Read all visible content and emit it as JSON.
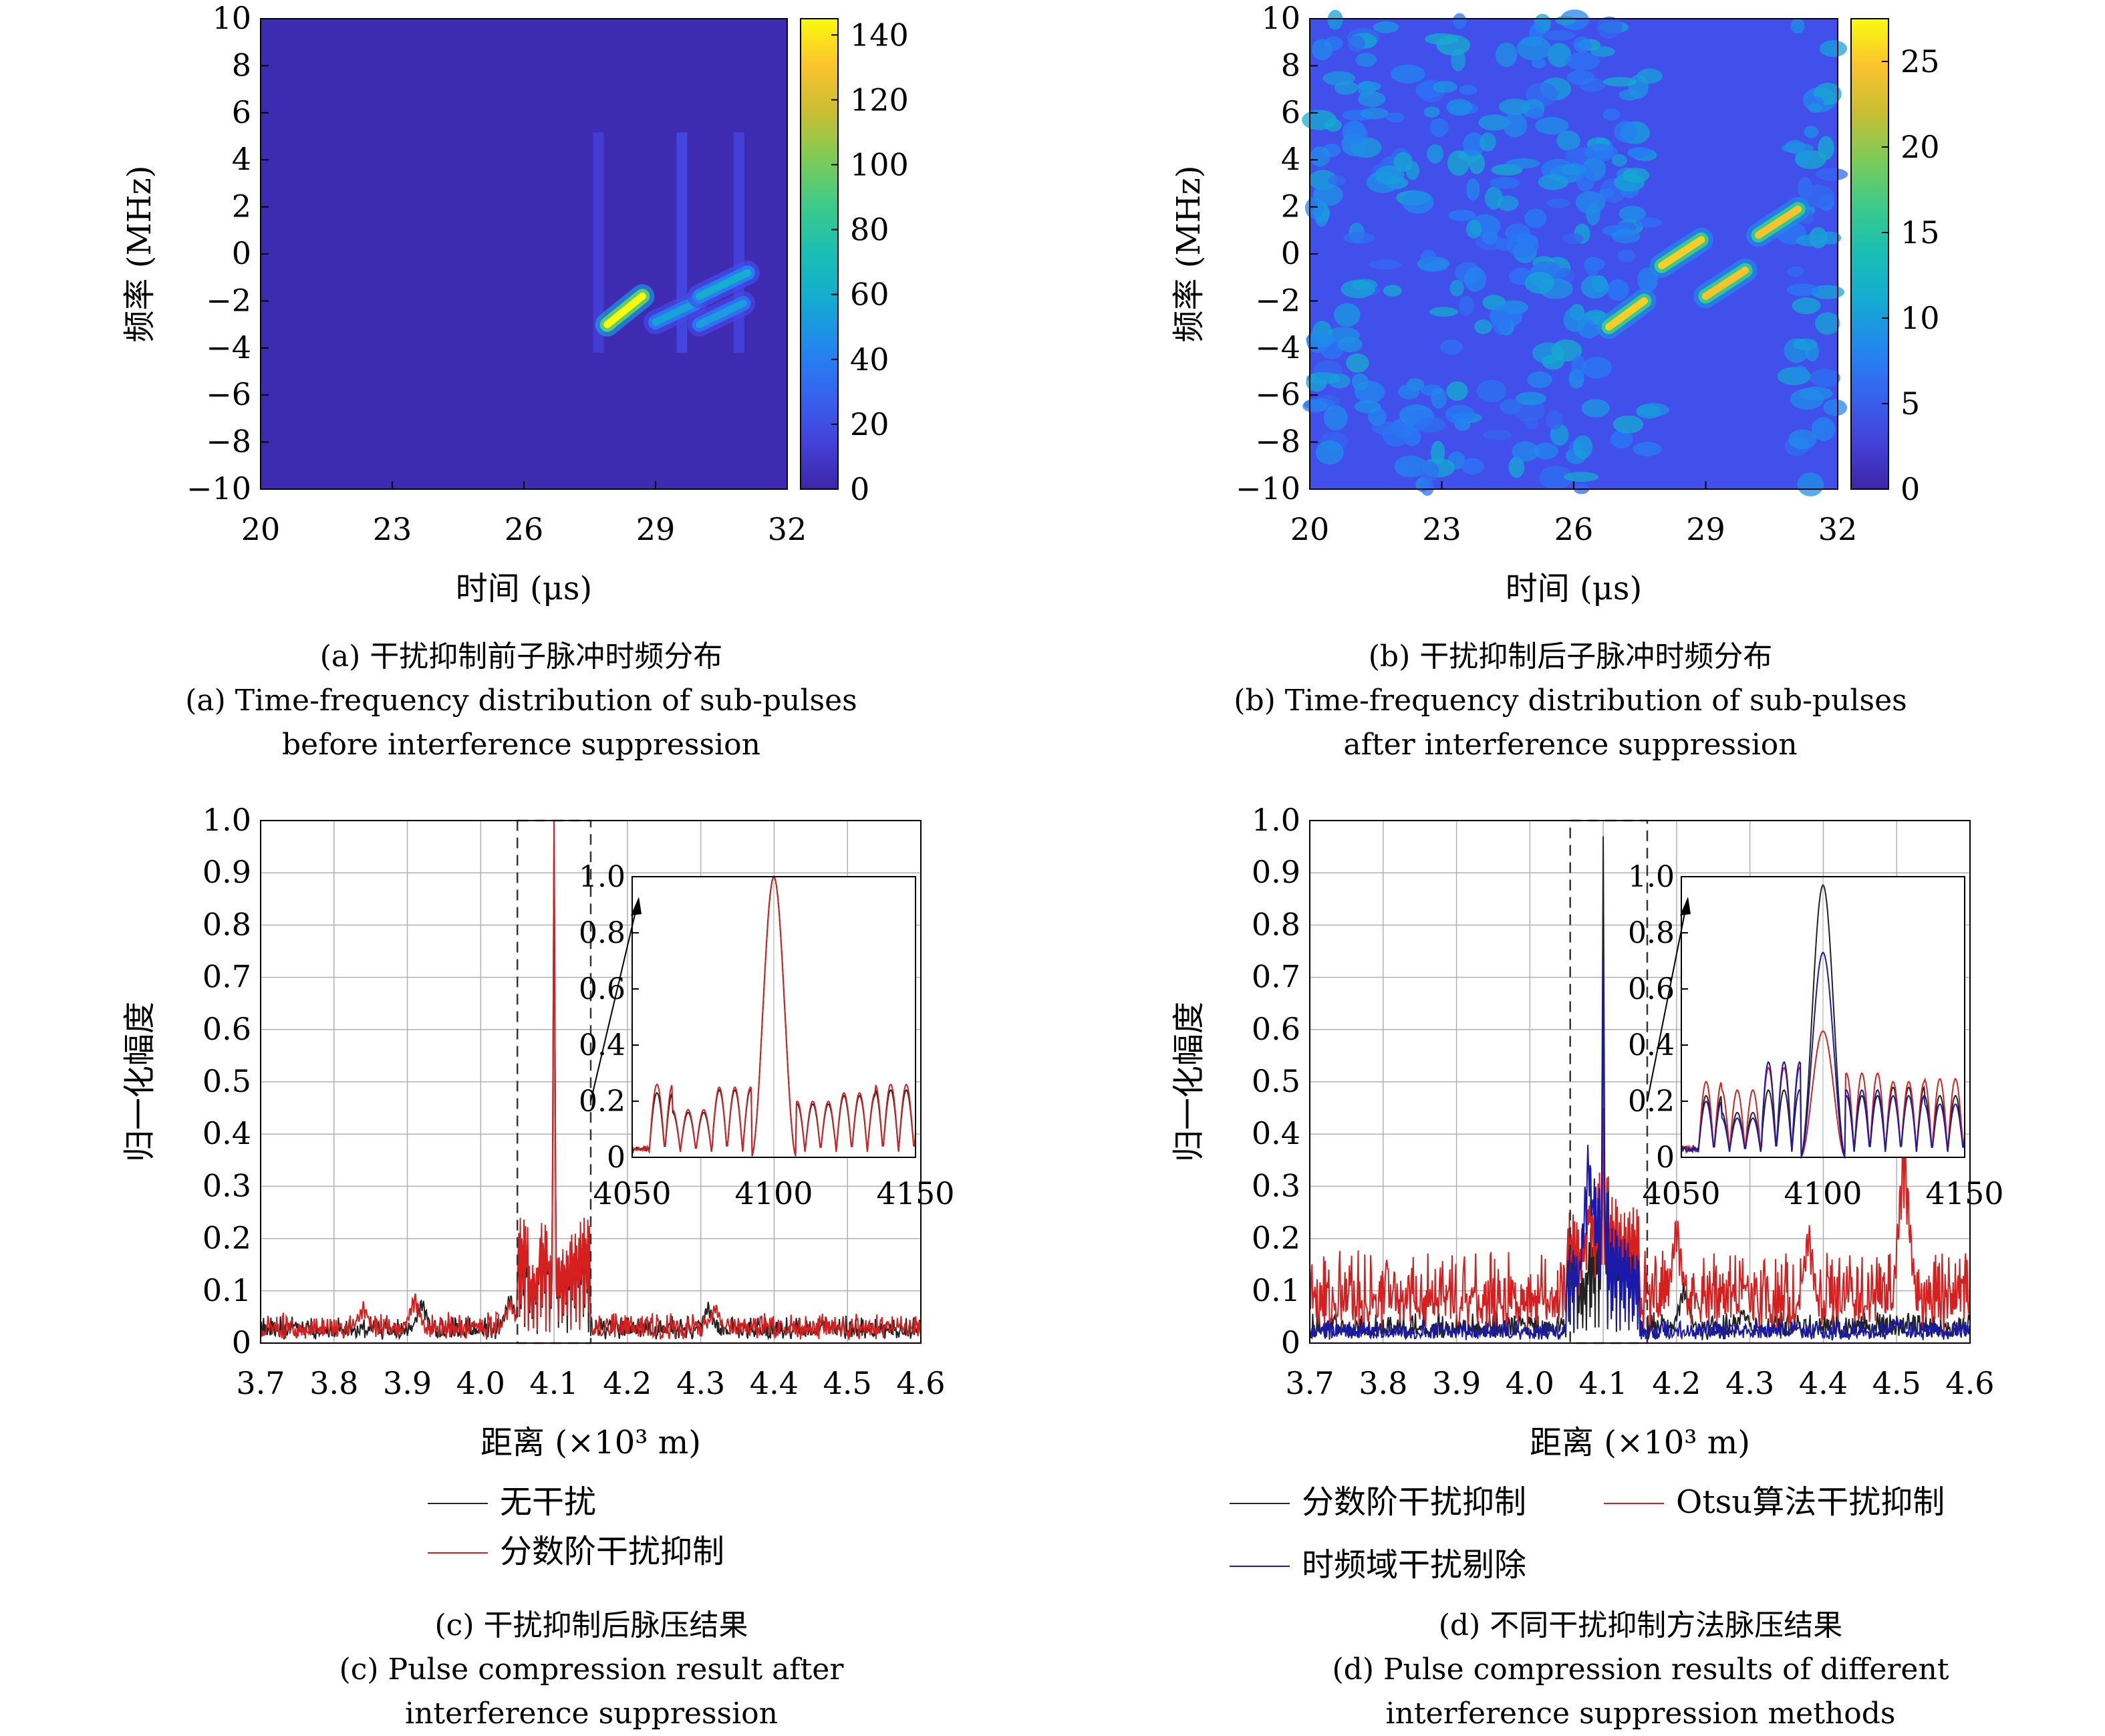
{
  "panels": [
    {
      "id": "a",
      "caption_cn": "(a) 干扰抑制前子脉冲时频分布",
      "caption_en_1": "(a) Time-frequency distribution of sub-pulses",
      "caption_en_2": "before interference suppression"
    },
    {
      "id": "b",
      "caption_cn": "(b) 干扰抑制后子脉冲时频分布",
      "caption_en_1": "(b) Time-frequency distribution of sub-pulses",
      "caption_en_2": "after interference suppression"
    },
    {
      "id": "c",
      "caption_cn": "(c) 干扰抑制后脉压结果",
      "caption_en_1": "(c) Pulse compression result after",
      "caption_en_2": "interference suppression"
    },
    {
      "id": "d",
      "caption_cn": "(d) 不同干扰抑制方法脉压结果",
      "caption_en_1": "(d) Pulse compression results of different",
      "caption_en_2": "interference suppression methods"
    }
  ],
  "colors": {
    "black_series": "#222222",
    "red_series": "#d62020",
    "blue_series": "#1a1aa8",
    "parula_low": "#3e26a8",
    "parula_high": "#f9fb0e"
  },
  "chart_data": [
    {
      "id": "a",
      "type": "heatmap",
      "xlabel": "时间 (μs)",
      "ylabel": "频率 (MHz)",
      "xlim": [
        20,
        32
      ],
      "ylim": [
        -10,
        10
      ],
      "xticks": [
        "20",
        "23",
        "26",
        "29",
        "32"
      ],
      "yticks": [
        "−10",
        "−8",
        "−6",
        "−4",
        "−2",
        "0",
        "2",
        "4",
        "6",
        "8",
        "10"
      ],
      "colorbar": {
        "min": 0,
        "max": 145,
        "ticks": [
          "0",
          "20",
          "40",
          "60",
          "80",
          "100",
          "120",
          "140"
        ]
      },
      "colormap": "parula",
      "background_level": 0.02,
      "segments": [
        {
          "t0": 27.9,
          "f0": -3.0,
          "t1": 28.7,
          "f1": -1.8,
          "peak": 1.0
        },
        {
          "t0": 29.0,
          "f0": -2.9,
          "t1": 29.9,
          "f1": -2.1,
          "peak": 0.38
        },
        {
          "t0": 30.0,
          "f0": -1.8,
          "t1": 31.1,
          "f1": -0.8,
          "peak": 0.42
        },
        {
          "t0": 30.0,
          "f0": -3.0,
          "t1": 31.0,
          "f1": -2.1,
          "peak": 0.36
        }
      ],
      "streaks": [
        {
          "t": 27.7,
          "level": 0.1
        },
        {
          "t": 29.6,
          "level": 0.14
        },
        {
          "t": 30.9,
          "level": 0.12
        }
      ]
    },
    {
      "id": "b",
      "type": "heatmap",
      "xlabel": "时间 (μs)",
      "ylabel": "频率 (MHz)",
      "xlim": [
        20,
        32
      ],
      "ylim": [
        -10,
        10
      ],
      "xticks": [
        "20",
        "23",
        "26",
        "29",
        "32"
      ],
      "yticks": [
        "−10",
        "−8",
        "−6",
        "−4",
        "−2",
        "0",
        "2",
        "4",
        "6",
        "8",
        "10"
      ],
      "colorbar": {
        "min": 0,
        "max": 27.5,
        "ticks": [
          "0",
          "5",
          "10",
          "15",
          "20",
          "25"
        ]
      },
      "colormap": "parula",
      "background_level": 0.15,
      "noise_region": [
        20,
        27.9
      ],
      "noise_region_2": [
        30.9,
        32
      ],
      "segments": [
        {
          "t0": 26.8,
          "f0": -3.1,
          "t1": 27.6,
          "f1": -2.0,
          "peak": 0.92
        },
        {
          "t0": 28.0,
          "f0": -0.5,
          "t1": 28.9,
          "f1": 0.6,
          "peak": 0.92
        },
        {
          "t0": 29.0,
          "f0": -1.8,
          "t1": 29.9,
          "f1": -0.7,
          "peak": 0.9
        },
        {
          "t0": 30.2,
          "f0": 0.8,
          "t1": 31.1,
          "f1": 1.9,
          "peak": 0.9
        }
      ]
    },
    {
      "id": "c",
      "type": "line",
      "xlabel": "距离 (×10³ m)",
      "ylabel": "归一化幅度",
      "xlim": [
        3.7,
        4.6
      ],
      "ylim": [
        0,
        1.0
      ],
      "xticks": [
        "3.7",
        "3.8",
        "3.9",
        "4.0",
        "4.1",
        "4.2",
        "4.3",
        "4.4",
        "4.5",
        "4.6"
      ],
      "yticks": [
        "0",
        "0.1",
        "0.2",
        "0.3",
        "0.4",
        "0.5",
        "0.6",
        "0.7",
        "0.8",
        "0.9",
        "1.0"
      ],
      "grid": true,
      "zoom_box": [
        4.05,
        4.15
      ],
      "inset": {
        "xlim": [
          4050,
          4150
        ],
        "ylim": [
          0,
          1.0
        ],
        "xticks": [
          "4050",
          "4100",
          "4150"
        ],
        "yticks": [
          "0",
          "0.2",
          "0.4",
          "0.6",
          "0.8",
          "1.0"
        ]
      },
      "legend": "below",
      "series": [
        {
          "name": "无干扰",
          "color": "#222222",
          "peak_x": 4.1,
          "sidelobe_levels": [
            0.21,
            0.14,
            0.22,
            0.16,
            0.17,
            0.2,
            0.22
          ],
          "noise_level": 0.035,
          "noise_bumps": [
            [
              3.92,
              0.09
            ],
            [
              4.04,
              0.1
            ],
            [
              4.31,
              0.08
            ],
            [
              4.47,
              0.05
            ]
          ]
        },
        {
          "name": "分数阶干扰抑制",
          "color": "#d62020",
          "peak_x": 4.1,
          "sidelobe_levels": [
            0.24,
            0.15,
            0.23,
            0.17,
            0.18,
            0.21,
            0.24
          ],
          "noise_level": 0.04,
          "noise_bumps": [
            [
              3.84,
              0.08
            ],
            [
              3.91,
              0.1
            ],
            [
              4.04,
              0.09
            ],
            [
              4.32,
              0.08
            ],
            [
              4.57,
              0.04
            ]
          ]
        }
      ]
    },
    {
      "id": "d",
      "type": "line",
      "xlabel": "距离 (×10³ m)",
      "ylabel": "归一化幅度",
      "xlim": [
        3.7,
        4.6
      ],
      "ylim": [
        0,
        1.0
      ],
      "xticks": [
        "3.7",
        "3.8",
        "3.9",
        "4.0",
        "4.1",
        "4.2",
        "4.3",
        "4.4",
        "4.5",
        "4.6"
      ],
      "yticks": [
        "0",
        "0.1",
        "0.2",
        "0.3",
        "0.4",
        "0.5",
        "0.6",
        "0.7",
        "0.8",
        "0.9",
        "1.0"
      ],
      "grid": true,
      "zoom_box": [
        4.055,
        4.16
      ],
      "inset": {
        "xlim": [
          4050,
          4150
        ],
        "ylim": [
          0,
          1.0
        ],
        "xticks": [
          "4050",
          "4100",
          "4150"
        ],
        "yticks": [
          "0",
          "0.2",
          "0.4",
          "0.6",
          "0.8",
          "1.0"
        ]
      },
      "legend": "below",
      "series": [
        {
          "name": "分数阶干扰抑制",
          "color": "#222222",
          "peak_x": 4.1,
          "peak": 0.97,
          "inset_sidelobes": [
            0.2,
            0.14,
            0.22,
            0.25,
            0.2,
            0.23,
            0.2
          ],
          "noise_level": 0.04,
          "noise_bumps": [
            [
              4.21,
              0.12
            ],
            [
              4.29,
              0.07
            ]
          ]
        },
        {
          "name": "Otsu算法干扰抑制",
          "color": "#d62020",
          "peak_x": 4.1,
          "peak": 0.45,
          "inset_sidelobes": [
            0.25,
            0.22,
            0.3,
            0.33,
            0.28,
            0.25,
            0.26
          ],
          "noise_level": 0.12,
          "noise_bumps": [
            [
              4.08,
              0.27
            ],
            [
              4.2,
              0.26
            ],
            [
              4.38,
              0.24
            ],
            [
              4.51,
              0.42
            ]
          ]
        },
        {
          "name": "时频域干扰剔除",
          "color": "#1a1aa8",
          "peak_x": 4.1,
          "peak": 0.73,
          "inset_sidelobes": [
            0.18,
            0.12,
            0.32,
            0.3,
            0.22,
            0.2,
            0.17
          ],
          "noise_level": 0.03,
          "noise_bumps": [
            [
              4.08,
              0.4
            ],
            [
              4.5,
              0.05
            ]
          ]
        }
      ]
    }
  ]
}
